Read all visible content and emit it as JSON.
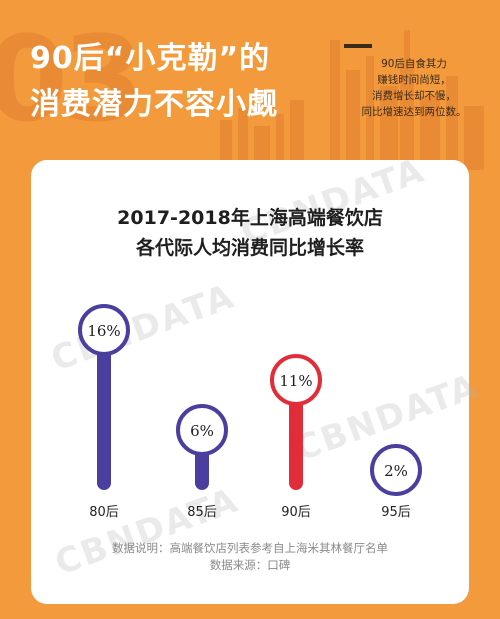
{
  "header": {
    "bg_number": "03",
    "headline_line1": "90后“小克勒”的",
    "headline_line2": "消费潜力不容小觑",
    "side_note": [
      "90后自食其力",
      "赚钱时间尚短，",
      "消费增长却不慢，",
      "同比增速达到两位数。"
    ]
  },
  "watermark": {
    "text": "CBNDATA"
  },
  "colors": {
    "background": "#f39a3c",
    "blue": "#4a3f9f",
    "red": "#e02d39"
  },
  "chart_data": {
    "type": "bar",
    "title_line1": "2017-2018年上海高端餐饮店",
    "title_line2": "各代际人均消费同比增长率",
    "categories": [
      "80后",
      "85后",
      "90后",
      "95后"
    ],
    "values": [
      16,
      6,
      11,
      2
    ],
    "value_labels": [
      "16%",
      "6%",
      "11%",
      "2%"
    ],
    "bar_colors": [
      "#4a3f9f",
      "#4a3f9f",
      "#e02d39",
      "#4a3f9f"
    ],
    "ylim": [
      0,
      18
    ],
    "grid": false,
    "legend": "none"
  },
  "footer": {
    "line1": "数据说明：高端餐饮店列表参考自上海米其林餐厅名单",
    "line2": "数据来源：口碑"
  }
}
